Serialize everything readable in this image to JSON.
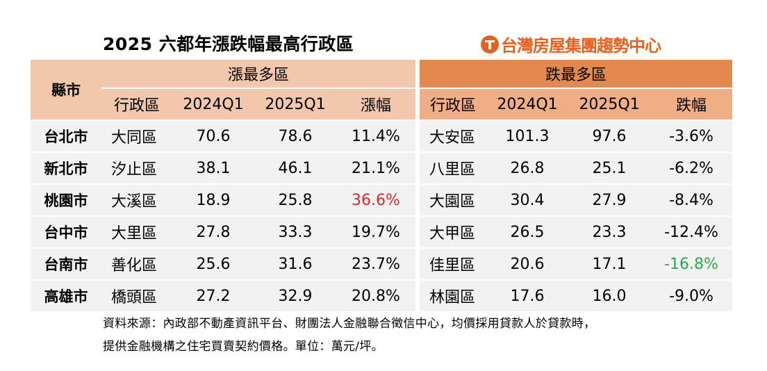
{
  "title": "2025 六都年漲跌幅最高行政區",
  "brand": "台灣房屋集團趨勢中心",
  "header": {
    "city": "縣市",
    "up_group": "漲最多區",
    "down_group": "跌最多區",
    "up_cols": [
      "行政區",
      "2024Q1",
      "2025Q1",
      "漲幅"
    ],
    "down_cols": [
      "行政區",
      "2024Q1",
      "2025Q1",
      "跌幅"
    ]
  },
  "rows": [
    {
      "city": "台北市",
      "up": [
        "大同區",
        "70.6",
        "78.6",
        "11.4%"
      ],
      "down": [
        "大安區",
        "101.3",
        "97.6",
        "-3.6%"
      ]
    },
    {
      "city": "新北市",
      "up": [
        "汐止區",
        "38.1",
        "46.1",
        "21.1%"
      ],
      "down": [
        "八里區",
        "26.8",
        "25.1",
        "-6.2%"
      ]
    },
    {
      "city": "桃園市",
      "up": [
        "大溪區",
        "18.9",
        "25.8",
        "36.6%"
      ],
      "down": [
        "大園區",
        "30.4",
        "27.9",
        "-8.4%"
      ]
    },
    {
      "city": "台中市",
      "up": [
        "大里區",
        "27.8",
        "33.3",
        "19.7%"
      ],
      "down": [
        "大甲區",
        "26.5",
        "23.3",
        "-12.4%"
      ]
    },
    {
      "city": "台南市",
      "up": [
        "善化區",
        "25.6",
        "31.6",
        "23.7%"
      ],
      "down": [
        "佳里區",
        "20.6",
        "17.1",
        "-16.8%"
      ]
    },
    {
      "city": "高雄市",
      "up": [
        "橋頭區",
        "27.2",
        "32.9",
        "20.8%"
      ],
      "down": [
        "林園區",
        "17.6",
        "16.0",
        "-9.0%"
      ]
    }
  ],
  "highlights": {
    "max_up_color": "#d52a2a",
    "max_down_color": "#2ca84a"
  },
  "notes": [
    "資料來源：內政部不動產資訊平台、財團法人金融聯合徵信中心，均價採用貸款人於貸款時，",
    "提供金融機構之住宅買賣契約價格。單位：萬元/坪。"
  ]
}
